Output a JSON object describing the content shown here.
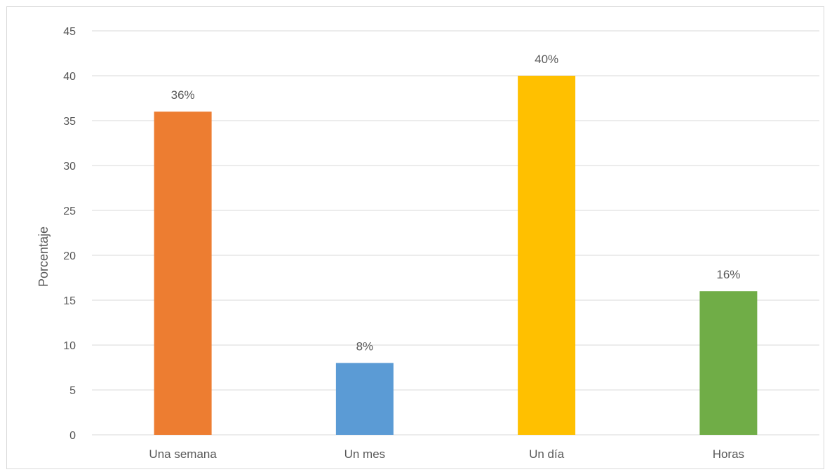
{
  "chart_data": {
    "type": "bar",
    "title": "",
    "xlabel": "",
    "ylabel": "Porcentaje",
    "ylim": [
      0,
      45
    ],
    "y_ticks": [
      0,
      5,
      10,
      15,
      20,
      25,
      30,
      35,
      40,
      45
    ],
    "categories": [
      "Una semana",
      "Un mes",
      "Un día",
      "Horas"
    ],
    "values": [
      36,
      8,
      40,
      16
    ],
    "data_labels": [
      "36%",
      "8%",
      "40%",
      "16%"
    ],
    "colors": [
      "#ED7D31",
      "#5B9BD5",
      "#FFC000",
      "#70AD47"
    ],
    "grid": true,
    "legend": "none"
  }
}
